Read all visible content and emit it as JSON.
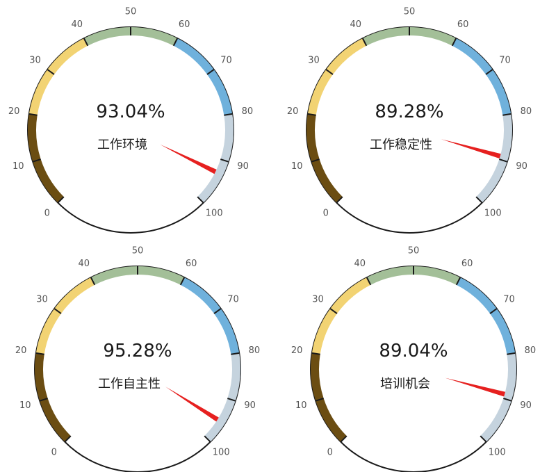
{
  "chart_data": [
    {
      "type": "gauge",
      "title": "工作环境",
      "value": 93.04,
      "value_label": "93.04%",
      "range": [
        0,
        100
      ],
      "ticks": [
        "0",
        "10",
        "20",
        "30",
        "40",
        "50",
        "60",
        "70",
        "80",
        "90",
        "100"
      ]
    },
    {
      "type": "gauge",
      "title": "工作稳定性",
      "value": 89.28,
      "value_label": "89.28%",
      "range": [
        0,
        100
      ],
      "ticks": [
        "0",
        "10",
        "20",
        "30",
        "40",
        "50",
        "60",
        "70",
        "80",
        "90",
        "100"
      ]
    },
    {
      "type": "gauge",
      "title": "工作自主性",
      "value": 95.28,
      "value_label": "95.28%",
      "range": [
        0,
        100
      ],
      "ticks": [
        "0",
        "10",
        "20",
        "30",
        "40",
        "50",
        "60",
        "70",
        "80",
        "90",
        "100"
      ]
    },
    {
      "type": "gauge",
      "title": "培训机会",
      "value": 89.04,
      "value_label": "89.04%",
      "range": [
        0,
        100
      ],
      "ticks": [
        "0",
        "10",
        "20",
        "30",
        "40",
        "50",
        "60",
        "70",
        "80",
        "90",
        "100"
      ]
    }
  ],
  "bands": [
    {
      "from": 0,
      "to": 20,
      "color": "#6b4d12"
    },
    {
      "from": 20,
      "to": 40,
      "color": "#f2d373"
    },
    {
      "from": 40,
      "to": 60,
      "color": "#a3bf98"
    },
    {
      "from": 60,
      "to": 80,
      "color": "#6fb1dc"
    },
    {
      "from": 80,
      "to": 100,
      "color": "#c5d3de"
    }
  ],
  "needle_color": "#e6201f",
  "rim_color": "#1a1a1a"
}
